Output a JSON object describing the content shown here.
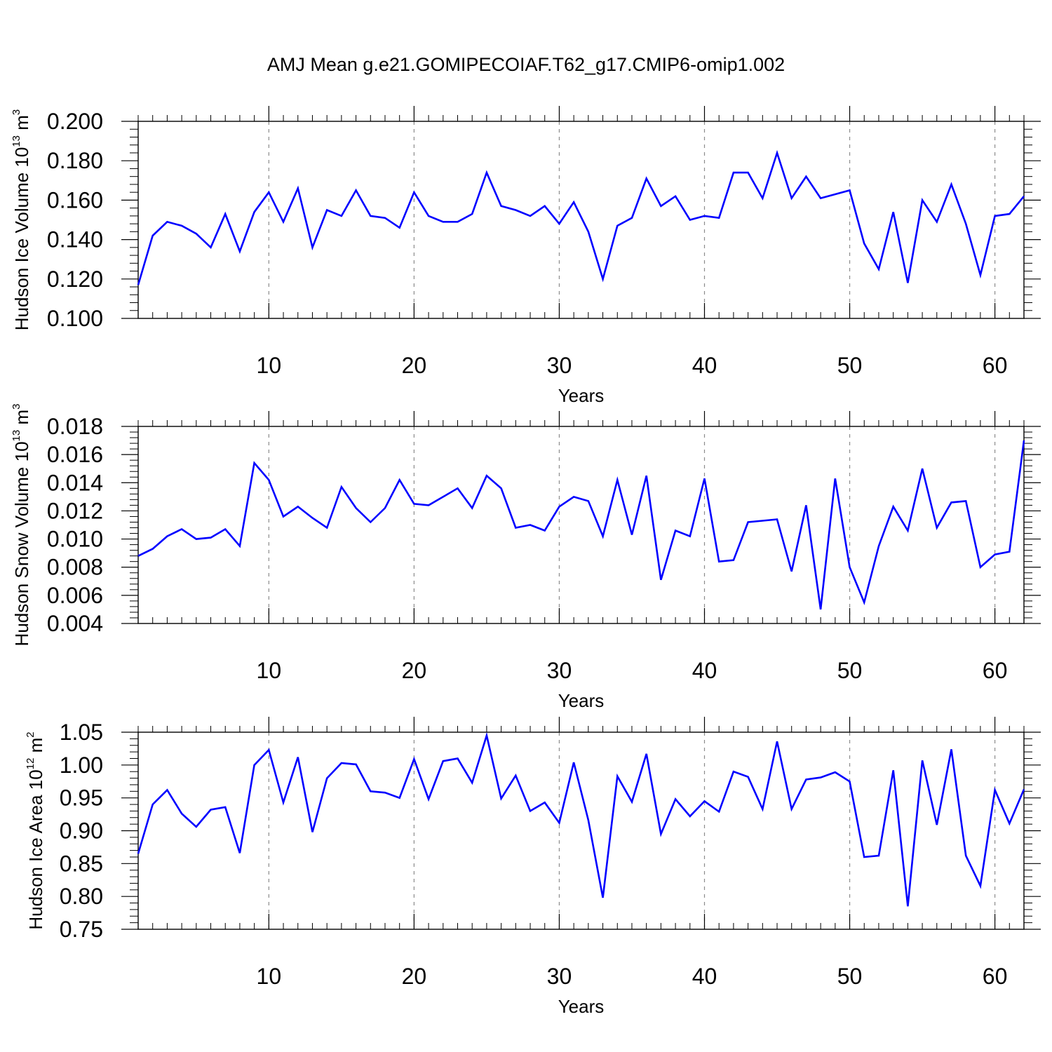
{
  "title": "AMJ Mean g.e21.GOMIPECOIAF.T62_g17.CMIP6-omip1.002",
  "colors": {
    "line": "#0000ff",
    "axis": "#000000",
    "grid": "#8c8c8c",
    "background": "#ffffff"
  },
  "chart_data": [
    {
      "type": "line",
      "ylabel_main": "Hudson Ice Volume 10",
      "ylabel_sup": "13",
      "ylabel_unit": " m",
      "ylabel_unit_sup": "3",
      "xlabel": "Years",
      "xlim": [
        1,
        62
      ],
      "ylim": [
        0.1,
        0.2
      ],
      "ytick_values": [
        0.1,
        0.12,
        0.14,
        0.16,
        0.18,
        0.2
      ],
      "ytick_labels": [
        "0.100",
        "0.120",
        "0.140",
        "0.160",
        "0.180",
        "0.200"
      ],
      "xtick_values": [
        10,
        20,
        30,
        40,
        50,
        60
      ],
      "xtick_labels": [
        "10",
        "20",
        "30",
        "40",
        "50",
        "60"
      ],
      "x": [
        1,
        2,
        3,
        4,
        5,
        6,
        7,
        8,
        9,
        10,
        11,
        12,
        13,
        14,
        15,
        16,
        17,
        18,
        19,
        20,
        21,
        22,
        23,
        24,
        25,
        26,
        27,
        28,
        29,
        30,
        31,
        32,
        33,
        34,
        35,
        36,
        37,
        38,
        39,
        40,
        41,
        42,
        43,
        44,
        45,
        46,
        47,
        48,
        49,
        50,
        51,
        52,
        53,
        54,
        55,
        56,
        57,
        58,
        59,
        60,
        61,
        62
      ],
      "values": [
        0.117,
        0.142,
        0.149,
        0.147,
        0.143,
        0.136,
        0.153,
        0.134,
        0.154,
        0.164,
        0.149,
        0.166,
        0.136,
        0.155,
        0.152,
        0.165,
        0.152,
        0.151,
        0.146,
        0.164,
        0.152,
        0.149,
        0.149,
        0.153,
        0.174,
        0.157,
        0.155,
        0.152,
        0.157,
        0.148,
        0.159,
        0.144,
        0.12,
        0.147,
        0.151,
        0.171,
        0.157,
        0.162,
        0.15,
        0.152,
        0.151,
        0.174,
        0.174,
        0.161,
        0.184,
        0.161,
        0.172,
        0.161,
        0.163,
        0.165,
        0.138,
        0.125,
        0.154,
        0.118,
        0.16,
        0.149,
        0.168,
        0.148,
        0.122,
        0.152,
        0.153,
        0.162
      ]
    },
    {
      "type": "line",
      "ylabel_main": "Hudson Snow Volume 10",
      "ylabel_sup": "13",
      "ylabel_unit": " m",
      "ylabel_unit_sup": "3",
      "xlabel": "Years",
      "xlim": [
        1,
        62
      ],
      "ylim": [
        0.004,
        0.018
      ],
      "ytick_values": [
        0.004,
        0.006,
        0.008,
        0.01,
        0.012,
        0.014,
        0.016,
        0.018
      ],
      "ytick_labels": [
        "0.004",
        "0.006",
        "0.008",
        "0.010",
        "0.012",
        "0.014",
        "0.016",
        "0.018"
      ],
      "xtick_values": [
        10,
        20,
        30,
        40,
        50,
        60
      ],
      "xtick_labels": [
        "10",
        "20",
        "30",
        "40",
        "50",
        "60"
      ],
      "x": [
        1,
        2,
        3,
        4,
        5,
        6,
        7,
        8,
        9,
        10,
        11,
        12,
        13,
        14,
        15,
        16,
        17,
        18,
        19,
        20,
        21,
        22,
        23,
        24,
        25,
        26,
        27,
        28,
        29,
        30,
        31,
        32,
        33,
        34,
        35,
        36,
        37,
        38,
        39,
        40,
        41,
        42,
        43,
        44,
        45,
        46,
        47,
        48,
        49,
        50,
        51,
        52,
        53,
        54,
        55,
        56,
        57,
        58,
        59,
        60,
        61,
        62
      ],
      "values": [
        0.0088,
        0.0093,
        0.0102,
        0.0107,
        0.01,
        0.0101,
        0.0107,
        0.0095,
        0.0154,
        0.0142,
        0.0116,
        0.0123,
        0.0115,
        0.0108,
        0.0137,
        0.0122,
        0.0112,
        0.0122,
        0.0142,
        0.0125,
        0.0124,
        0.013,
        0.0136,
        0.0122,
        0.0145,
        0.0136,
        0.0108,
        0.011,
        0.0106,
        0.0123,
        0.013,
        0.0127,
        0.0102,
        0.0142,
        0.0103,
        0.0145,
        0.0071,
        0.0106,
        0.0102,
        0.0143,
        0.0084,
        0.0085,
        0.0112,
        0.0113,
        0.0114,
        0.0077,
        0.0124,
        0.005,
        0.0143,
        0.008,
        0.0055,
        0.0095,
        0.0123,
        0.0106,
        0.015,
        0.0108,
        0.0126,
        0.0127,
        0.008,
        0.0089,
        0.0091,
        0.017
      ]
    },
    {
      "type": "line",
      "ylabel_main": "Hudson Ice Area 10",
      "ylabel_sup": "12",
      "ylabel_unit": " m",
      "ylabel_unit_sup": "2",
      "xlabel": "Years",
      "xlim": [
        1,
        62
      ],
      "ylim": [
        0.75,
        1.05
      ],
      "ytick_values": [
        0.75,
        0.8,
        0.85,
        0.9,
        0.95,
        1.0,
        1.05
      ],
      "ytick_labels": [
        "0.75",
        "0.80",
        "0.85",
        "0.90",
        "0.95",
        "1.00",
        "1.05"
      ],
      "xtick_values": [
        10,
        20,
        30,
        40,
        50,
        60
      ],
      "xtick_labels": [
        "10",
        "20",
        "30",
        "40",
        "50",
        "60"
      ],
      "x": [
        1,
        2,
        3,
        4,
        5,
        6,
        7,
        8,
        9,
        10,
        11,
        12,
        13,
        14,
        15,
        16,
        17,
        18,
        19,
        20,
        21,
        22,
        23,
        24,
        25,
        26,
        27,
        28,
        29,
        30,
        31,
        32,
        33,
        34,
        35,
        36,
        37,
        38,
        39,
        40,
        41,
        42,
        43,
        44,
        45,
        46,
        47,
        48,
        49,
        50,
        51,
        52,
        53,
        54,
        55,
        56,
        57,
        58,
        59,
        60,
        61,
        62
      ],
      "values": [
        0.865,
        0.94,
        0.962,
        0.926,
        0.906,
        0.932,
        0.936,
        0.866,
        1.0,
        1.023,
        0.943,
        1.012,
        0.898,
        0.98,
        1.003,
        1.001,
        0.96,
        0.958,
        0.95,
        1.009,
        0.948,
        1.006,
        1.01,
        0.973,
        1.045,
        0.949,
        0.984,
        0.93,
        0.943,
        0.912,
        1.004,
        0.916,
        0.798,
        0.983,
        0.944,
        1.017,
        0.895,
        0.948,
        0.922,
        0.945,
        0.929,
        0.99,
        0.982,
        0.933,
        1.036,
        0.933,
        0.978,
        0.981,
        0.989,
        0.975,
        0.86,
        0.862,
        0.992,
        0.785,
        1.007,
        0.909,
        1.024,
        0.862,
        0.816,
        0.962,
        0.911,
        0.963
      ]
    }
  ]
}
